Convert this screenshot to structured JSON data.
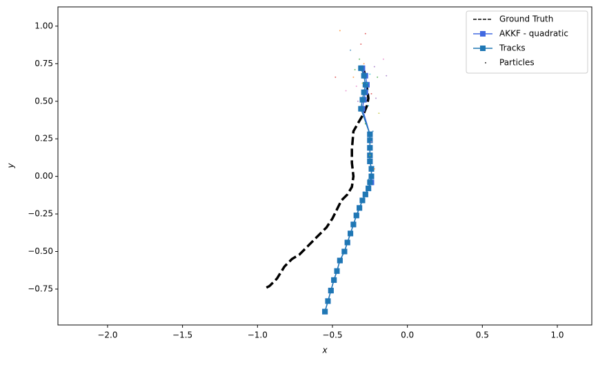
{
  "chart_data": {
    "type": "line",
    "xlabel": "x",
    "ylabel": "y",
    "xlim": [
      -2.331,
      1.23
    ],
    "ylim": [
      -0.989,
      1.128
    ],
    "xticks": [
      {
        "value": -2.0,
        "label": "−2.0"
      },
      {
        "value": -1.5,
        "label": "−1.5"
      },
      {
        "value": -1.0,
        "label": "−1.0"
      },
      {
        "value": -0.5,
        "label": "−0.5"
      },
      {
        "value": 0,
        "label": "0.0"
      },
      {
        "value": 0.5,
        "label": "0.5"
      },
      {
        "value": 1.0,
        "label": "1.0"
      }
    ],
    "yticks": [
      {
        "value": -0.75,
        "label": "−0.75"
      },
      {
        "value": -0.5,
        "label": "−0.50"
      },
      {
        "value": -0.25,
        "label": "−0.25"
      },
      {
        "value": 0,
        "label": "0.00"
      },
      {
        "value": 0.25,
        "label": "0.25"
      },
      {
        "value": 0.5,
        "label": "0.50"
      },
      {
        "value": 0.75,
        "label": "0.75"
      },
      {
        "value": 1.0,
        "label": "1.00"
      }
    ],
    "legend": "upper right",
    "series": [
      {
        "name": "Ground Truth",
        "color": "#000000",
        "style": "dashed",
        "x": [
          -0.94,
          -0.92,
          -0.87,
          -0.82,
          -0.77,
          -0.72,
          -0.66,
          -0.6,
          -0.54,
          -0.5,
          -0.47,
          -0.44,
          -0.4,
          -0.37,
          -0.36,
          -0.37,
          -0.37,
          -0.36,
          -0.32,
          -0.29,
          -0.27,
          -0.26,
          -0.27,
          -0.28,
          -0.29
        ],
        "y": [
          -0.74,
          -0.73,
          -0.68,
          -0.6,
          -0.55,
          -0.52,
          -0.46,
          -0.4,
          -0.34,
          -0.28,
          -0.22,
          -0.16,
          -0.12,
          -0.07,
          0.0,
          0.09,
          0.18,
          0.3,
          0.37,
          0.42,
          0.47,
          0.52,
          0.59,
          0.65,
          0.71
        ]
      },
      {
        "name": "AKKF - quadratic",
        "color": "#4169e1",
        "style": "solid-square",
        "x": [
          -0.55,
          -0.53,
          -0.51,
          -0.49,
          -0.47,
          -0.45,
          -0.42,
          -0.4,
          -0.38,
          -0.36,
          -0.34,
          -0.32,
          -0.3,
          -0.28,
          -0.26,
          -0.24,
          -0.24,
          -0.24,
          -0.25,
          -0.25,
          -0.25,
          -0.25,
          -0.25,
          -0.3,
          -0.29,
          -0.28,
          -0.27,
          -0.28,
          -0.3
        ],
        "y": [
          -0.9,
          -0.83,
          -0.76,
          -0.69,
          -0.63,
          -0.56,
          -0.5,
          -0.44,
          -0.38,
          -0.32,
          -0.26,
          -0.21,
          -0.16,
          -0.12,
          -0.08,
          -0.04,
          0.0,
          0.05,
          0.1,
          0.14,
          0.19,
          0.24,
          0.28,
          0.45,
          0.51,
          0.56,
          0.61,
          0.67,
          0.72
        ]
      },
      {
        "name": "Tracks",
        "color": "#1f77b4",
        "style": "solid-square",
        "x": [
          -0.55,
          -0.53,
          -0.51,
          -0.49,
          -0.47,
          -0.45,
          -0.42,
          -0.4,
          -0.38,
          -0.36,
          -0.34,
          -0.32,
          -0.3,
          -0.28,
          -0.26,
          -0.25,
          -0.24,
          -0.24,
          -0.25,
          -0.25,
          -0.25,
          -0.25,
          -0.25,
          -0.31,
          -0.3,
          -0.29,
          -0.28,
          -0.29,
          -0.31
        ],
        "y": [
          -0.9,
          -0.83,
          -0.76,
          -0.69,
          -0.63,
          -0.56,
          -0.5,
          -0.44,
          -0.38,
          -0.32,
          -0.26,
          -0.21,
          -0.16,
          -0.12,
          -0.08,
          -0.04,
          0.0,
          0.05,
          0.1,
          0.14,
          0.19,
          0.24,
          0.28,
          0.45,
          0.51,
          0.56,
          0.61,
          0.67,
          0.72
        ]
      },
      {
        "name": "Particles",
        "color": "#333333",
        "style": "dots",
        "point_colors": [
          "#ff7f0e",
          "#1f77b4",
          "#2ca02c",
          "#d62728",
          "#9467bd",
          "#e377c2",
          "#17becf",
          "#bcbd22"
        ],
        "x": [
          -0.45,
          -0.38,
          -0.32,
          -0.28,
          -0.22,
          -0.16,
          -0.25,
          -0.3,
          -0.36,
          -0.27,
          -0.2,
          -0.24,
          -0.33,
          -0.41,
          -0.26,
          -0.19,
          -0.29,
          -0.23,
          -0.35,
          -0.31,
          -0.21,
          -0.24,
          -0.27,
          -0.25,
          -0.22,
          -0.26,
          -0.28,
          -0.48,
          -0.14,
          -0.34
        ],
        "y": [
          0.97,
          0.84,
          0.78,
          0.95,
          0.73,
          0.78,
          0.68,
          0.62,
          0.66,
          0.58,
          0.66,
          0.55,
          0.5,
          0.57,
          0.47,
          0.42,
          0.75,
          0.3,
          0.71,
          0.88,
          0.52,
          0.23,
          0.62,
          0.14,
          0.05,
          -0.02,
          0.35,
          0.66,
          0.67,
          0.6
        ]
      }
    ]
  }
}
